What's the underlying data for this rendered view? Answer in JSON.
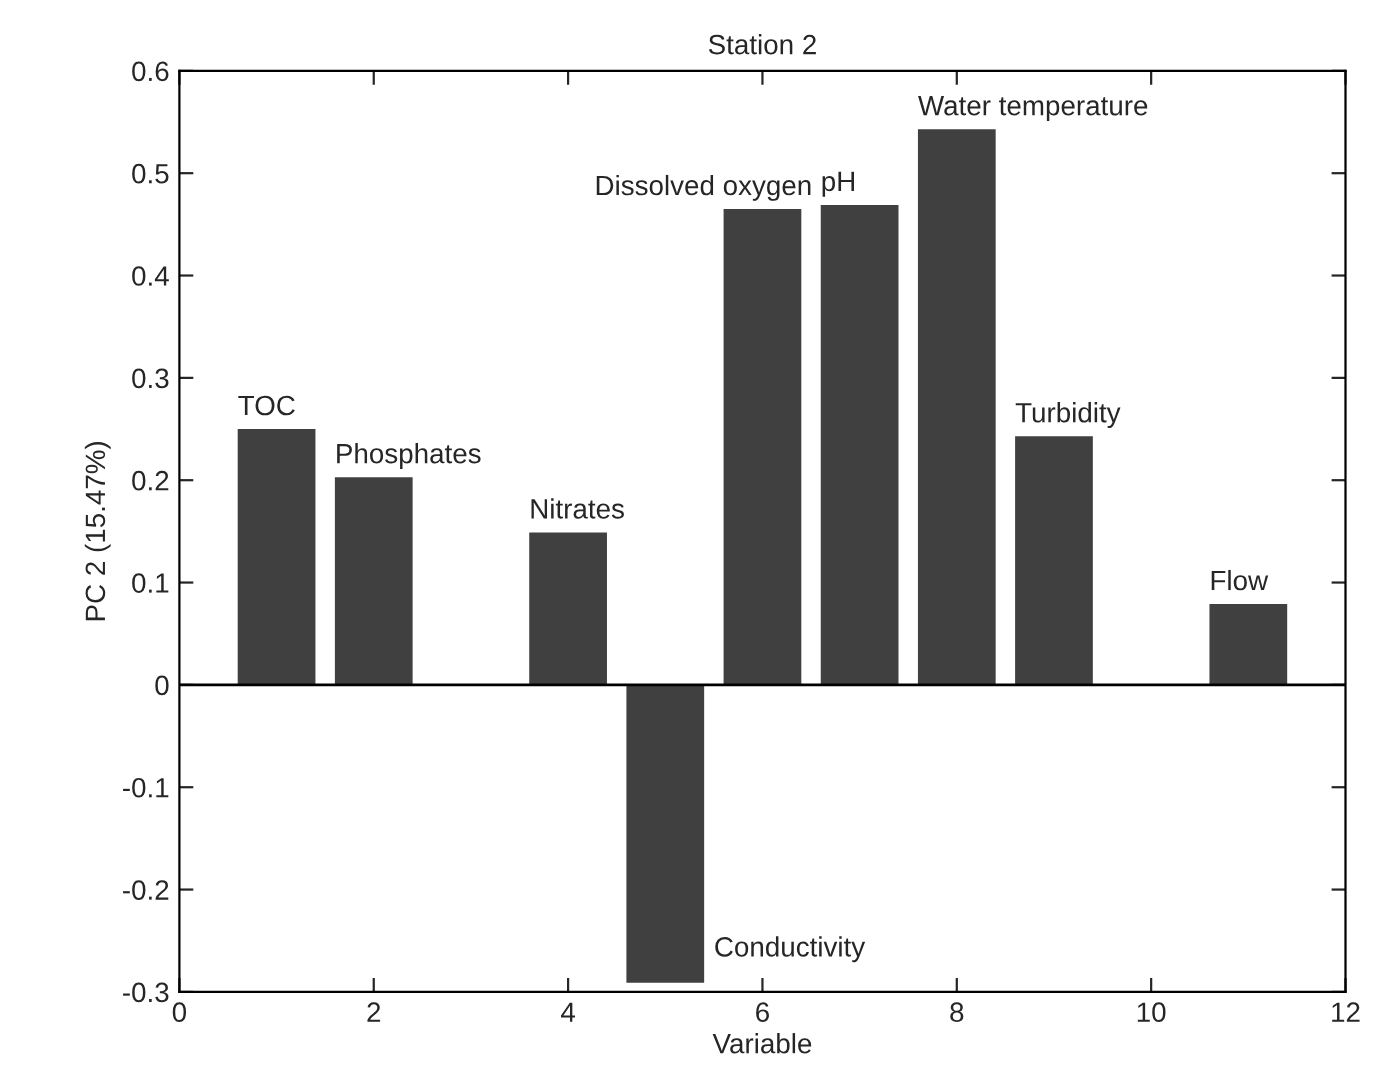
{
  "chart_data": {
    "type": "bar",
    "title": "Station 2",
    "xlabel": "Variable",
    "ylabel": "PC 2 (15.47%)",
    "x": [
      1,
      2,
      4,
      5,
      6,
      7,
      8,
      9,
      11
    ],
    "series": [
      {
        "color": "#404040",
        "values": [
          0.25,
          0.203,
          0.149,
          -0.291,
          0.465,
          0.469,
          0.543,
          0.243,
          0.079
        ]
      }
    ],
    "xlim": [
      0,
      12
    ],
    "xticks": [
      0,
      2,
      4,
      6,
      8,
      10,
      12
    ],
    "ylim": [
      -0.3,
      0.6
    ],
    "yticks": [
      -0.3,
      -0.2,
      -0.1,
      0,
      0.1,
      0.2,
      0.3,
      0.4,
      0.5,
      0.6
    ],
    "ref_lines": [
      {
        "axis": "y",
        "value": 0,
        "color": "#000000"
      }
    ],
    "annotations": [
      {
        "text": "TOC",
        "x": 1,
        "y": 0.25
      },
      {
        "text": "Phosphates",
        "x": 2,
        "y": 0.203
      },
      {
        "text": "Nitrates",
        "x": 4,
        "y": 0.149
      },
      {
        "text": "Conductivity",
        "x": 5,
        "y": -0.291
      },
      {
        "text": "Dissolved oxygen",
        "x": 6,
        "y": 0.465
      },
      {
        "text": "pH",
        "x": 7,
        "y": 0.469
      },
      {
        "text": "Water temperature",
        "x": 8,
        "y": 0.543
      },
      {
        "text": "Turbidity",
        "x": 9,
        "y": 0.243
      },
      {
        "text": "Flow",
        "x": 11,
        "y": 0.079
      }
    ],
    "grid": false,
    "legend": false
  }
}
